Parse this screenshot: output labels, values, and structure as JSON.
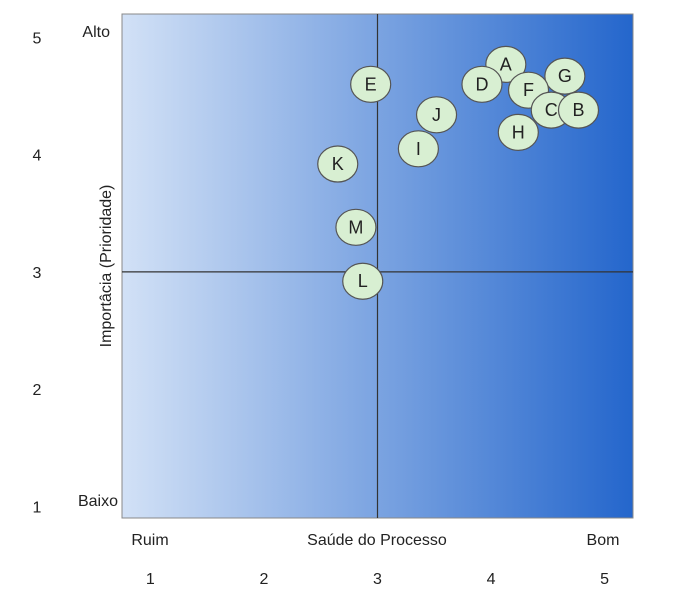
{
  "chart_data": {
    "type": "scatter",
    "title": "",
    "xlabel": "Saúde do Processo",
    "ylabel": "Importâcia (Prioridade)",
    "xlim": [
      0.75,
      5.25
    ],
    "ylim": [
      0.9,
      5.2
    ],
    "x_ticks": [
      "1",
      "2",
      "3",
      "4",
      "5"
    ],
    "y_ticks": [
      "1",
      "2",
      "3",
      "4",
      "5"
    ],
    "x_category_labels": {
      "low": "Ruim",
      "high": "Bom"
    },
    "y_category_labels": {
      "low": "Baixo",
      "high": "Alto"
    },
    "dividers": {
      "x": 3,
      "y": 3
    },
    "grid": false,
    "legend": "none",
    "colors": {
      "gradient_start": "#d2e1f6",
      "gradient_end": "#2466cc",
      "bubble_fill": "#d8efd2",
      "bubble_stroke": "#555555",
      "divider": "#333333"
    },
    "points": [
      {
        "label": "A",
        "x": 4.13,
        "y": 4.77
      },
      {
        "label": "D",
        "x": 3.92,
        "y": 4.6
      },
      {
        "label": "G",
        "x": 4.65,
        "y": 4.67
      },
      {
        "label": "F",
        "x": 4.33,
        "y": 4.55
      },
      {
        "label": "C",
        "x": 4.53,
        "y": 4.38
      },
      {
        "label": "B",
        "x": 4.77,
        "y": 4.38
      },
      {
        "label": "H",
        "x": 4.24,
        "y": 4.19
      },
      {
        "label": "E",
        "x": 2.94,
        "y": 4.6
      },
      {
        "label": "J",
        "x": 3.52,
        "y": 4.34
      },
      {
        "label": "I",
        "x": 3.36,
        "y": 4.05
      },
      {
        "label": "K",
        "x": 2.65,
        "y": 3.92
      },
      {
        "label": "M",
        "x": 2.81,
        "y": 3.38
      },
      {
        "label": "L",
        "x": 2.87,
        "y": 2.92
      }
    ]
  }
}
